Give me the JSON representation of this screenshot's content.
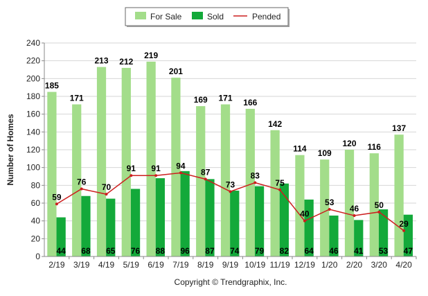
{
  "chart_data": {
    "type": "bar",
    "categories": [
      "2/19",
      "3/19",
      "4/19",
      "5/19",
      "6/19",
      "7/19",
      "8/19",
      "9/19",
      "10/19",
      "11/19",
      "12/19",
      "1/20",
      "2/20",
      "3/20",
      "4/20"
    ],
    "series": [
      {
        "name": "For Sale",
        "type": "bar",
        "color": "#a3dd8a",
        "values": [
          185,
          171,
          213,
          212,
          219,
          201,
          169,
          171,
          166,
          142,
          114,
          109,
          120,
          116,
          137
        ]
      },
      {
        "name": "Sold",
        "type": "bar",
        "color": "#13a93a",
        "values": [
          44,
          68,
          65,
          76,
          88,
          96,
          87,
          74,
          79,
          82,
          64,
          46,
          41,
          53,
          47
        ]
      },
      {
        "name": "Pended",
        "type": "line",
        "color": "#cc1e1e",
        "values": [
          59,
          76,
          70,
          91,
          91,
          94,
          87,
          73,
          83,
          75,
          40,
          53,
          46,
          50,
          29
        ]
      }
    ],
    "title": "",
    "xlabel": "",
    "ylabel": "Number of Homes",
    "ylim": [
      0,
      240
    ],
    "yticks": [
      0,
      20,
      40,
      60,
      80,
      100,
      120,
      140,
      160,
      180,
      200,
      220,
      240
    ],
    "grid": true,
    "legend_position": "top-center",
    "footer": "Copyright © Trendgraphix, Inc."
  }
}
